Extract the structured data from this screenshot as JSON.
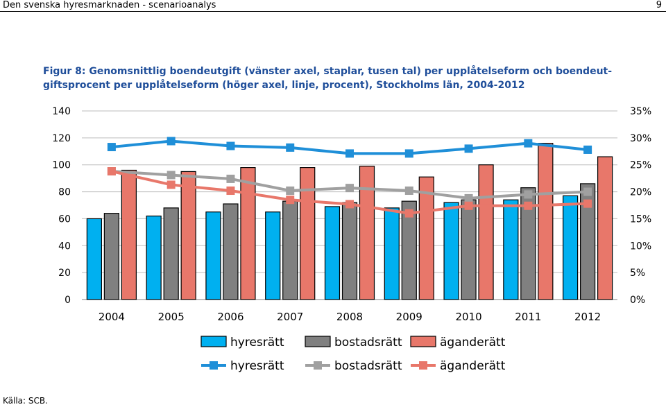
{
  "header": {
    "doc_title": "Den svenska hyresmarknaden - scenarioanalys",
    "page_number": "9"
  },
  "figure": {
    "title_line1": "Figur 8: Genomsnittlig boendeutgift (vänster axel, staplar, tusen tal) per upplåtelseform och boendeut-",
    "title_line2": "giftsprocent per upplåtelseform (höger axel, linje, procent), Stockholms län, 2004-2012"
  },
  "chart_data": {
    "type": "bar",
    "title": "Figur 8: Genomsnittlig boendeutgift (vänster axel, staplar, tusen tal) per upplåtelseform och boendeutgiftsprocent per upplåtelseform (höger axel, linje, procent), Stockholms län, 2004-2012",
    "categories": [
      "2004",
      "2005",
      "2006",
      "2007",
      "2008",
      "2009",
      "2010",
      "2011",
      "2012"
    ],
    "series": [
      {
        "name": "hyresrätt",
        "kind": "bar",
        "axis": "left",
        "color": "#00B0F0",
        "values": [
          60,
          62,
          65,
          65,
          69,
          68,
          72,
          74,
          77
        ]
      },
      {
        "name": "bostadsrätt",
        "kind": "bar",
        "axis": "left",
        "color": "#808080",
        "values": [
          64,
          68,
          71,
          73,
          72,
          73,
          74,
          83,
          86
        ]
      },
      {
        "name": "äganderätt",
        "kind": "bar",
        "axis": "left",
        "color": "#E8776A",
        "values": [
          96,
          95,
          98,
          98,
          99,
          91,
          100,
          116,
          106
        ]
      },
      {
        "name": "hyresrätt",
        "kind": "line",
        "axis": "right",
        "color": "#1F8FD8",
        "values": [
          28.3,
          29.4,
          28.5,
          28.2,
          27.1,
          27.1,
          28.0,
          29.0,
          27.8
        ]
      },
      {
        "name": "bostadsrätt",
        "kind": "line",
        "axis": "right",
        "color": "#A0A0A0",
        "values": [
          23.8,
          23.1,
          22.4,
          20.2,
          20.7,
          20.2,
          18.8,
          19.5,
          20.0
        ]
      },
      {
        "name": "äganderätt",
        "kind": "line",
        "axis": "right",
        "color": "#E8776A",
        "values": [
          23.8,
          21.3,
          20.2,
          18.5,
          17.7,
          16.0,
          17.4,
          17.4,
          17.8
        ]
      }
    ],
    "left_axis": {
      "ylim": [
        0,
        140
      ],
      "ticks": [
        "0",
        "20",
        "40",
        "60",
        "80",
        "100",
        "120",
        "140"
      ]
    },
    "right_axis": {
      "ylim": [
        0,
        35
      ],
      "ticks": [
        "0%",
        "5%",
        "10%",
        "15%",
        "20%",
        "25%",
        "30%",
        "35%"
      ]
    },
    "xlabel": "",
    "ylabel": "",
    "grid": true,
    "legend_position": "bottom"
  },
  "source": "Källa: SCB."
}
